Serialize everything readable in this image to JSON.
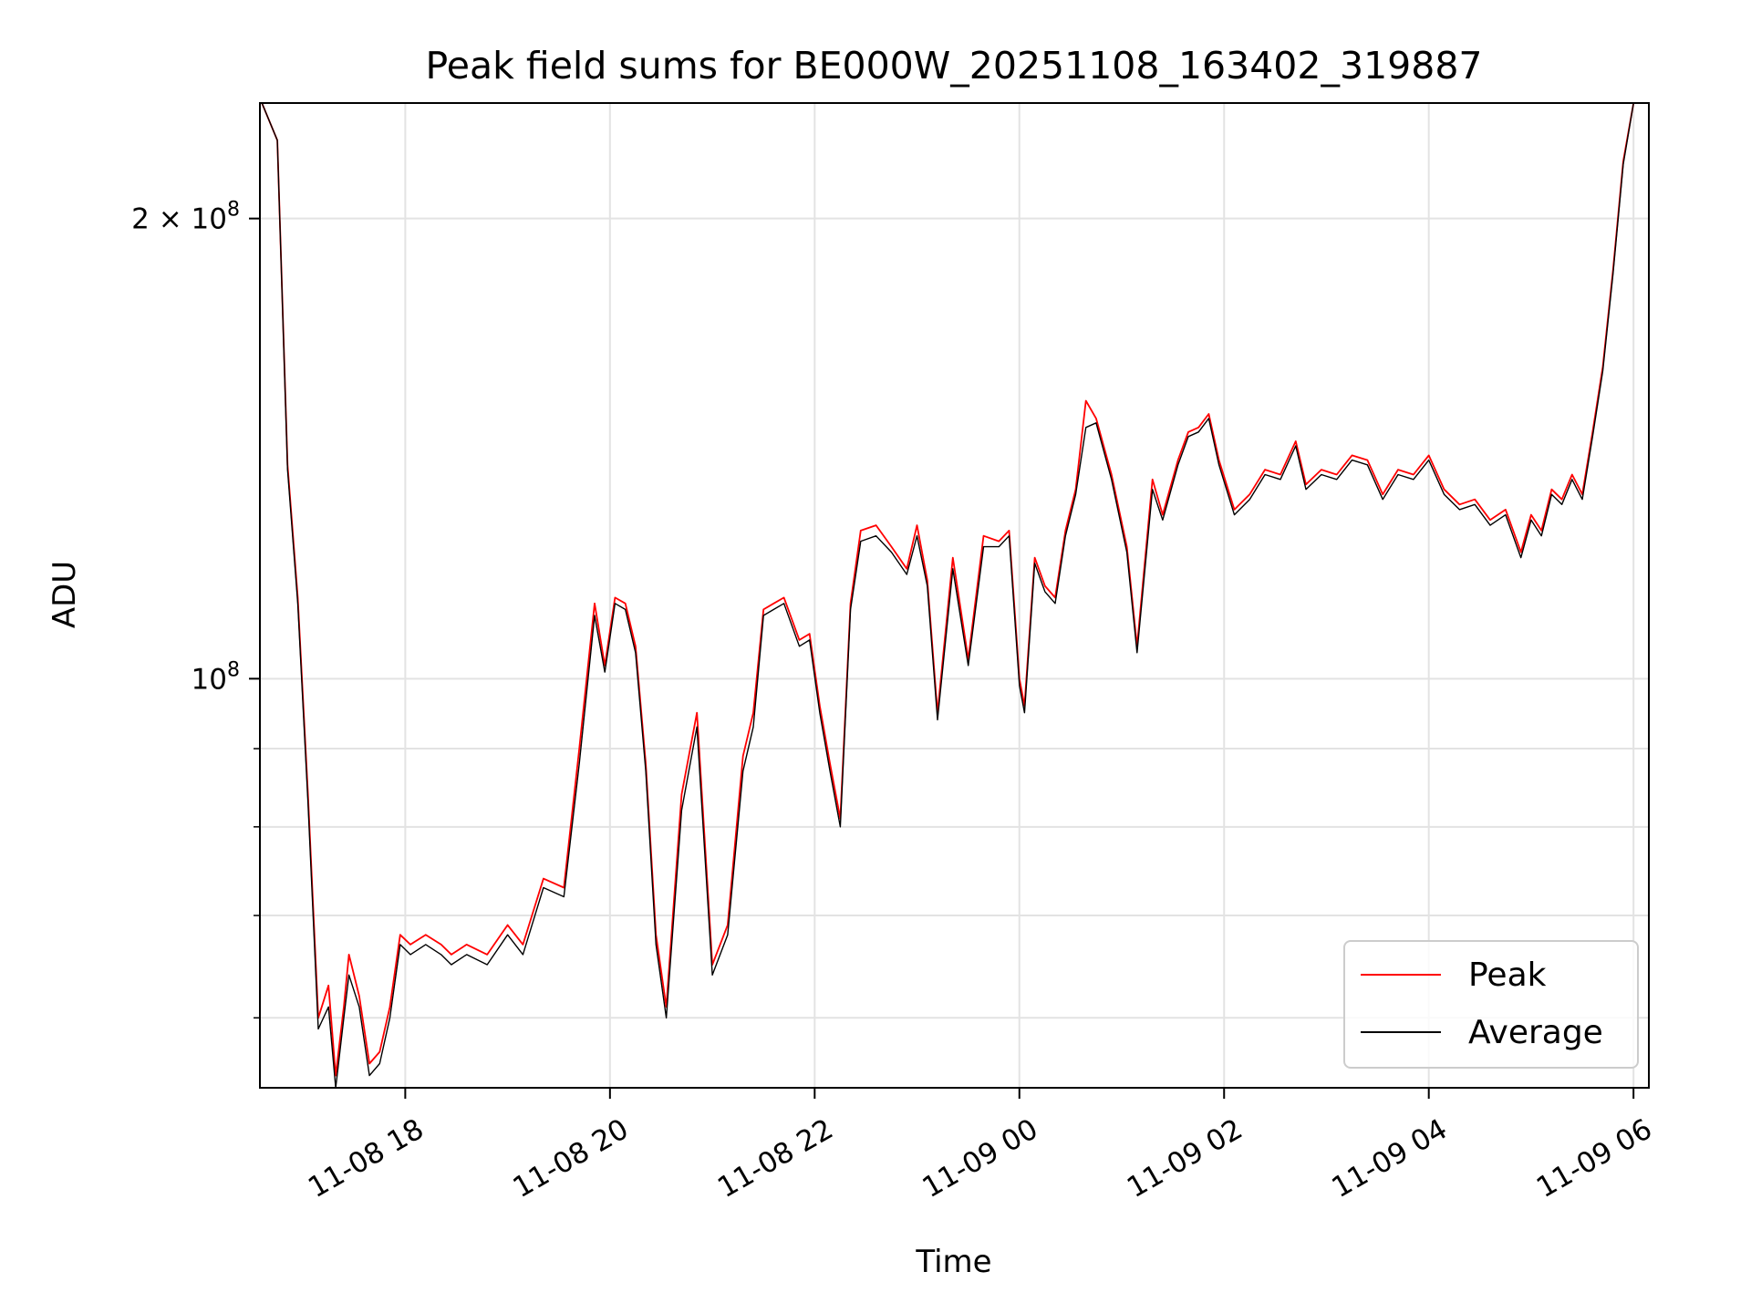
{
  "chart_data": {
    "type": "line",
    "title": "Peak field sums for BE000W_20251108_163402_319887",
    "xlabel": "Time",
    "ylabel": "ADU",
    "yscale": "log",
    "ylim": [
      54000000,
      238000000
    ],
    "xlim_hours_from_1108_0000": [
      16.58,
      30.15
    ],
    "grid": true,
    "legend_position": "lower right",
    "x_ticks": [
      {
        "t": 18,
        "label": "11-08 18"
      },
      {
        "t": 20,
        "label": "11-08 20"
      },
      {
        "t": 22,
        "label": "11-08 22"
      },
      {
        "t": 24,
        "label": "11-09 00"
      },
      {
        "t": 26,
        "label": "11-09 02"
      },
      {
        "t": 28,
        "label": "11-09 04"
      },
      {
        "t": 30,
        "label": "11-09 06"
      }
    ],
    "y_major_ticks": [
      {
        "v": 100000000,
        "base": "10",
        "exp": "8"
      },
      {
        "v": 200000000,
        "base": "2 × 10",
        "exp": "8"
      }
    ],
    "y_minor_ticks": [
      60000000,
      70000000,
      80000000,
      90000000
    ],
    "series": [
      {
        "name": "Peak",
        "color": "#ff0000",
        "x_hours": [
          16.6,
          16.75,
          16.85,
          16.95,
          17.05,
          17.15,
          17.25,
          17.32,
          17.4,
          17.45,
          17.55,
          17.65,
          17.75,
          17.85,
          17.95,
          18.05,
          18.2,
          18.35,
          18.45,
          18.6,
          18.8,
          19.0,
          19.15,
          19.35,
          19.55,
          19.7,
          19.85,
          19.95,
          20.05,
          20.15,
          20.25,
          20.35,
          20.45,
          20.55,
          20.7,
          20.85,
          21.0,
          21.15,
          21.3,
          21.4,
          21.5,
          21.6,
          21.7,
          21.85,
          21.95,
          22.05,
          22.15,
          22.25,
          22.35,
          22.45,
          22.6,
          22.75,
          22.9,
          23.0,
          23.1,
          23.2,
          23.35,
          23.5,
          23.65,
          23.8,
          23.9,
          24.0,
          24.05,
          24.15,
          24.25,
          24.35,
          24.45,
          24.55,
          24.65,
          24.75,
          24.9,
          25.05,
          25.15,
          25.3,
          25.4,
          25.55,
          25.65,
          25.75,
          25.85,
          25.95,
          26.1,
          26.25,
          26.4,
          26.55,
          26.7,
          26.8,
          26.95,
          27.1,
          27.25,
          27.4,
          27.55,
          27.7,
          27.85,
          28.0,
          28.15,
          28.3,
          28.45,
          28.6,
          28.75,
          28.9,
          29.0,
          29.1,
          29.2,
          29.3,
          29.4,
          29.5,
          29.6,
          29.7,
          29.8,
          29.9,
          30.0
        ],
        "values": [
          238000000,
          225000000,
          138000000,
          113000000,
          84000000,
          60000000,
          63000000,
          55000000,
          61000000,
          66000000,
          62000000,
          56000000,
          57000000,
          61000000,
          68000000,
          67000000,
          68000000,
          67000000,
          66000000,
          67000000,
          66000000,
          69000000,
          67000000,
          74000000,
          73000000,
          90000000,
          112000000,
          102000000,
          113000000,
          112000000,
          105000000,
          88000000,
          68000000,
          61000000,
          84000000,
          95000000,
          65000000,
          69000000,
          89000000,
          95000000,
          111000000,
          112000000,
          113000000,
          106000000,
          107000000,
          96000000,
          88000000,
          81000000,
          112000000,
          125000000,
          126000000,
          122000000,
          118000000,
          126000000,
          116000000,
          95000000,
          120000000,
          103000000,
          124000000,
          123000000,
          125000000,
          100000000,
          96000000,
          120000000,
          115000000,
          113000000,
          125000000,
          133000000,
          152000000,
          148000000,
          136000000,
          122000000,
          105000000,
          135000000,
          128000000,
          139000000,
          145000000,
          146000000,
          149000000,
          139000000,
          129000000,
          132000000,
          137000000,
          136000000,
          143000000,
          134000000,
          137000000,
          136000000,
          140000000,
          139000000,
          132000000,
          137000000,
          136000000,
          140000000,
          133000000,
          130000000,
          131000000,
          127000000,
          129000000,
          121000000,
          128000000,
          125000000,
          133000000,
          131000000,
          136000000,
          132000000,
          145000000,
          160000000,
          185000000,
          218000000,
          238000000
        ]
      },
      {
        "name": "Average",
        "color": "#000000",
        "x_hours": [
          16.6,
          16.75,
          16.85,
          16.95,
          17.05,
          17.15,
          17.25,
          17.32,
          17.4,
          17.45,
          17.55,
          17.65,
          17.75,
          17.85,
          17.95,
          18.05,
          18.2,
          18.35,
          18.45,
          18.6,
          18.8,
          19.0,
          19.15,
          19.35,
          19.55,
          19.7,
          19.85,
          19.95,
          20.05,
          20.15,
          20.25,
          20.35,
          20.45,
          20.55,
          20.7,
          20.85,
          21.0,
          21.15,
          21.3,
          21.4,
          21.5,
          21.6,
          21.7,
          21.85,
          21.95,
          22.05,
          22.15,
          22.25,
          22.35,
          22.45,
          22.6,
          22.75,
          22.9,
          23.0,
          23.1,
          23.2,
          23.35,
          23.5,
          23.65,
          23.8,
          23.9,
          24.0,
          24.05,
          24.15,
          24.25,
          24.35,
          24.45,
          24.55,
          24.65,
          24.75,
          24.9,
          25.05,
          25.15,
          25.3,
          25.4,
          25.55,
          25.65,
          25.75,
          25.85,
          25.95,
          26.1,
          26.25,
          26.4,
          26.55,
          26.7,
          26.8,
          26.95,
          27.1,
          27.25,
          27.4,
          27.55,
          27.7,
          27.85,
          28.0,
          28.15,
          28.3,
          28.45,
          28.6,
          28.75,
          28.9,
          29.0,
          29.1,
          29.2,
          29.3,
          29.4,
          29.5,
          29.6,
          29.7,
          29.8,
          29.9,
          30.0
        ],
        "values": [
          238000000,
          225000000,
          137000000,
          112000000,
          83000000,
          59000000,
          61000000,
          54000000,
          60000000,
          64000000,
          61000000,
          55000000,
          56000000,
          60000000,
          67000000,
          66000000,
          67000000,
          66000000,
          65000000,
          66000000,
          65000000,
          68000000,
          66000000,
          73000000,
          72000000,
          88000000,
          110000000,
          101000000,
          112000000,
          111000000,
          104000000,
          87000000,
          67000000,
          60000000,
          82000000,
          93000000,
          64000000,
          68000000,
          87000000,
          93000000,
          110000000,
          111000000,
          112000000,
          105000000,
          106000000,
          95000000,
          87000000,
          80000000,
          111000000,
          123000000,
          124000000,
          121000000,
          117000000,
          124000000,
          115000000,
          94000000,
          118000000,
          102000000,
          122000000,
          122000000,
          124000000,
          99000000,
          95000000,
          119000000,
          114000000,
          112000000,
          124000000,
          132000000,
          146000000,
          147000000,
          135000000,
          121000000,
          104000000,
          133000000,
          127000000,
          138000000,
          144000000,
          145000000,
          148000000,
          138000000,
          128000000,
          131000000,
          136000000,
          135000000,
          142000000,
          133000000,
          136000000,
          135000000,
          139000000,
          138000000,
          131000000,
          136000000,
          135000000,
          139000000,
          132000000,
          129000000,
          130000000,
          126000000,
          128000000,
          120000000,
          127000000,
          124000000,
          132000000,
          130000000,
          135000000,
          131000000,
          144000000,
          159000000,
          184000000,
          217000000,
          238000000
        ]
      }
    ]
  }
}
